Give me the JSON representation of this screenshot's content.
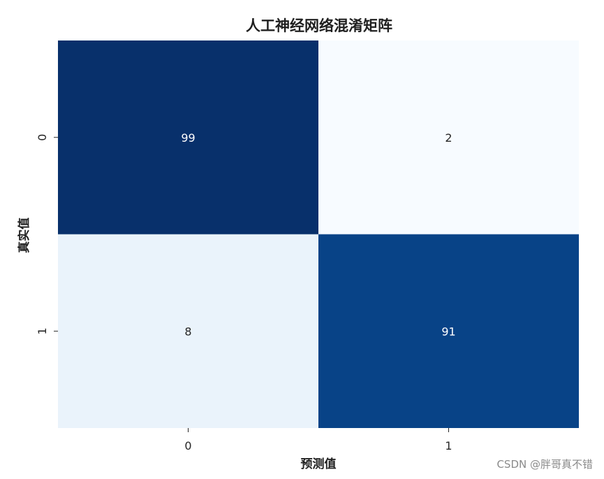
{
  "chart_data": {
    "type": "heatmap",
    "title": "人工神经网络混淆矩阵",
    "xlabel": "预测值",
    "ylabel": "真实值",
    "x_categories": [
      "0",
      "1"
    ],
    "y_categories": [
      "0",
      "1"
    ],
    "values": [
      [
        99,
        2
      ],
      [
        8,
        91
      ]
    ],
    "colormap": "Blues",
    "colorbar": false,
    "annotations": true
  },
  "watermark": "CSDN @胖哥真不错",
  "colors": {
    "cell_0_0": "#08306b",
    "cell_0_1": "#f7fbff",
    "cell_1_0": "#eaf3fb",
    "cell_1_1": "#084387",
    "text_dark": "#262626",
    "text_light": "#ffffff"
  }
}
